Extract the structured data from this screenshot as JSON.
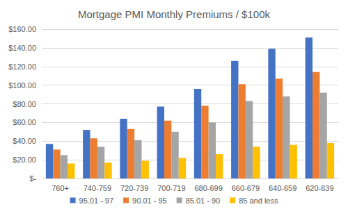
{
  "chart_data": {
    "type": "bar",
    "title": "Mortgage PMI Monthly Premiums / $100k",
    "categories": [
      "760+",
      "740-759",
      "720-739",
      "700-719",
      "680-699",
      "660-679",
      "640-659",
      "620-639"
    ],
    "series": [
      {
        "name": "95.01 - 97",
        "color": "#4472c4",
        "values": [
          37,
          52,
          64,
          77,
          96,
          126,
          139,
          151
        ]
      },
      {
        "name": "90.01 - 95",
        "color": "#ed7d31",
        "values": [
          31,
          43,
          53,
          62,
          78,
          101,
          107,
          114
        ]
      },
      {
        "name": "85.01 - 90",
        "color": "#a5a5a5",
        "values": [
          25,
          34,
          41,
          50,
          60,
          83,
          88,
          92
        ]
      },
      {
        "name": "85 and less",
        "color": "#ffc000",
        "values": [
          16,
          17,
          19,
          22,
          26,
          34,
          36,
          38
        ]
      }
    ],
    "ylim": [
      0,
      160
    ],
    "yticks": [
      {
        "value": 0,
        "label": "$-"
      },
      {
        "value": 20,
        "label": "$20.00"
      },
      {
        "value": 40,
        "label": "$40.00"
      },
      {
        "value": 60,
        "label": "$60.00"
      },
      {
        "value": 80,
        "label": "$80.00"
      },
      {
        "value": 100,
        "label": "$100.00"
      },
      {
        "value": 120,
        "label": "$120.00"
      },
      {
        "value": 140,
        "label": "$140.00"
      },
      {
        "value": 160,
        "label": "$160.00"
      }
    ],
    "grid": true,
    "legend": "bottom"
  }
}
